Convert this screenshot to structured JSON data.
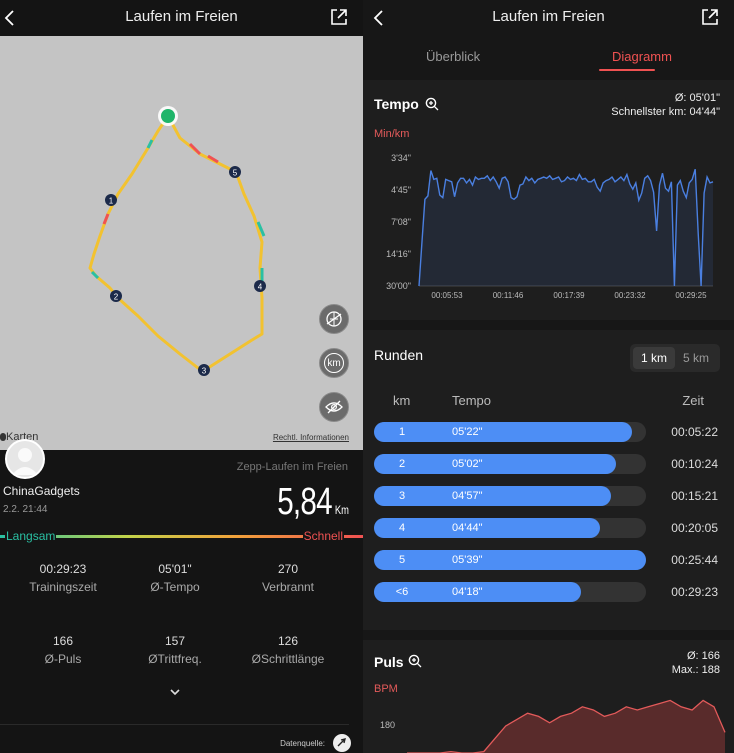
{
  "left": {
    "header": {
      "title": "Laufen im Freien"
    },
    "map": {
      "attribution": "Karten",
      "legal_link": "Rechtl. Informationen",
      "markers": [
        "1",
        "2",
        "3",
        "4",
        "5"
      ],
      "buttons": {
        "km": "km"
      }
    },
    "source_label": "Zepp-Laufen im Freien",
    "user": {
      "name": "ChinaGadgets",
      "date": "2.2. 21:44"
    },
    "distance": {
      "value": "5,84",
      "unit": "Km"
    },
    "speed_legend": {
      "slow": "Langsam",
      "fast": "Schnell",
      "slow_color": "#2ac0a3",
      "fast_color": "#f05252"
    },
    "stats": [
      {
        "value": "00:29:23",
        "label": "Trainingszeit"
      },
      {
        "value": "05'01\"",
        "label": "Ø-Tempo"
      },
      {
        "value": "270",
        "label": "Verbrannt"
      },
      {
        "value": "166",
        "label": "Ø-Puls"
      },
      {
        "value": "157",
        "label": "ØTrittfreq."
      },
      {
        "value": "126",
        "label": "ØSchrittlänge"
      }
    ],
    "data_source": "Datenquelle:"
  },
  "right": {
    "header": {
      "title": "Laufen im Freien"
    },
    "tabs": [
      {
        "label": "Überblick",
        "active": false
      },
      {
        "label": "Diagramm",
        "active": true
      }
    ],
    "tempo": {
      "title": "Tempo",
      "avg": "Ø: 05'01\"",
      "fastest": "Schnellster km: 04'44\"",
      "unit": "Min/km"
    },
    "laps": {
      "title": "Runden",
      "toggle": [
        "1 km",
        "5 km"
      ],
      "active_toggle": "1 km",
      "headers": {
        "km": "km",
        "pace": "Tempo",
        "time": "Zeit"
      },
      "rows": [
        {
          "km": "1",
          "pace": "05'22\"",
          "time": "00:05:22",
          "fill": 0.95
        },
        {
          "km": "2",
          "pace": "05'02\"",
          "time": "00:10:24",
          "fill": 0.89
        },
        {
          "km": "3",
          "pace": "04'57\"",
          "time": "00:15:21",
          "fill": 0.87
        },
        {
          "km": "4",
          "pace": "04'44\"",
          "time": "00:20:05",
          "fill": 0.83
        },
        {
          "km": "5",
          "pace": "05'39\"",
          "time": "00:25:44",
          "fill": 1.0
        },
        {
          "km": "<6",
          "pace": "04'18\"",
          "time": "00:29:23",
          "fill": 0.76
        }
      ]
    },
    "pulse": {
      "title": "Puls",
      "avg": "Ø: 166",
      "max": "Max.: 188",
      "unit": "BPM",
      "y_tick": "180"
    }
  },
  "colors": {
    "accent": "#f05252",
    "lap_bar": "#4d8ef5",
    "chart_line": "#4a7fe0",
    "route": "#f2c230"
  },
  "chart_data": [
    {
      "type": "line",
      "title": "Tempo",
      "ylabel": "Min/km",
      "y_ticks": [
        "3'34\"",
        "4'45\"",
        "7'08\"",
        "14'16\"",
        "30'00\""
      ],
      "x_ticks": [
        "00:05:53",
        "00:11:46",
        "00:17:39",
        "00:23:32",
        "00:29:25"
      ],
      "series": [
        {
          "values": [
            30,
            14.3,
            7.1,
            6.7,
            4.4,
            5.1,
            5.0,
            6.6,
            6.9,
            5.1,
            5.2,
            5.3,
            6.8,
            5.4,
            5.0,
            5.0,
            5.4,
            5.1,
            5.6,
            4.9,
            5.1,
            5.0,
            5.0,
            4.8,
            5.2,
            4.9,
            5.3,
            5.9,
            5.0,
            4.9,
            5.3,
            6.9,
            7.1,
            6.8,
            5.6,
            5.5,
            4.9,
            5.2,
            5.0,
            5.4,
            5.1,
            5.0,
            4.9,
            5.0,
            4.8,
            5.1,
            5.0,
            4.9,
            5.3,
            5.2,
            4.9,
            5.1,
            5.0,
            5.2,
            4.7,
            5.1,
            5.0,
            5.3,
            5.3,
            5.1,
            5.8,
            6.2,
            5.4,
            5.2,
            5.1,
            4.9,
            5.3,
            5.1,
            4.9,
            5.2,
            4.7,
            5.5,
            6.0,
            5.4,
            7.2,
            6.4,
            5.0,
            4.8,
            5.2,
            6.3,
            12.0,
            5.6,
            4.6,
            5.9,
            6.2,
            5.3,
            30,
            5.6,
            5.2,
            6.2,
            6.9,
            5.4,
            5.1,
            4.3,
            12.5,
            30,
            6.4,
            4.9,
            5.4,
            5.3
          ]
        }
      ]
    },
    {
      "type": "area",
      "title": "Puls",
      "ylabel": "BPM",
      "y_ticks": [
        "180"
      ],
      "series": [
        {
          "values": [
            140,
            150,
            160,
            168,
            172,
            170,
            168,
            172,
            176,
            180,
            182,
            184,
            183,
            181,
            183,
            184,
            186,
            185,
            183,
            184,
            186,
            185,
            186,
            187,
            188,
            186,
            185,
            188,
            186,
            178
          ]
        }
      ]
    }
  ]
}
